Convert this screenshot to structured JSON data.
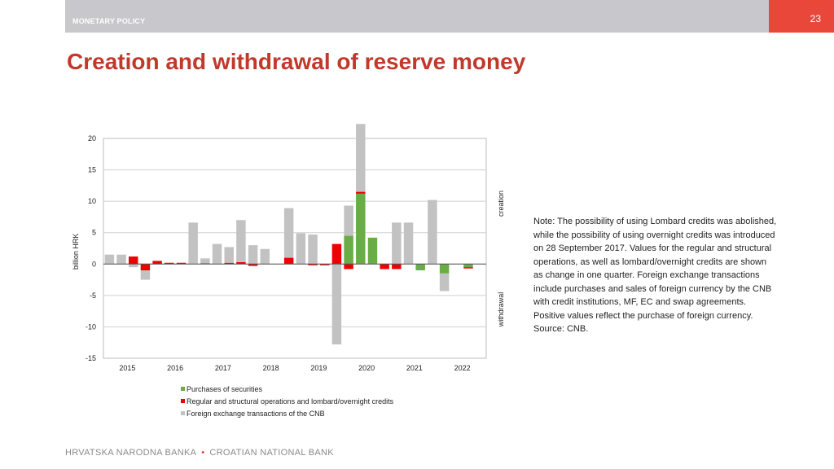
{
  "header": {
    "section": "MONETARY POLICY",
    "page_number": "23"
  },
  "title": "Creation and withdrawal of reserve money",
  "colors": {
    "securities": "#6aac46",
    "regular": "#ee0000",
    "fx": "#c2c2c2",
    "title": "#c0392b",
    "accent": "#e8473a"
  },
  "chart_data": {
    "type": "bar",
    "stacked": true,
    "ylabel": "billion HRK",
    "ylim": [
      -15,
      20
    ],
    "yticks": [
      -15,
      -10,
      -5,
      0,
      5,
      10,
      15,
      20
    ],
    "ytick_labels": [
      "-15",
      "-10",
      "-5",
      "0",
      "5",
      "10",
      "15",
      "20"
    ],
    "xtick_labels": [
      "2015",
      "2016",
      "2017",
      "2018",
      "2019",
      "2020",
      "2021",
      "2022"
    ],
    "periods_per_year": 4,
    "side_labels": {
      "positive": "creation",
      "negative": "withdrawal"
    },
    "series": [
      {
        "key": "securities",
        "name": "Purchases of securities",
        "values": [
          0,
          0,
          0,
          0,
          0,
          0,
          0,
          0,
          0,
          0,
          0,
          0,
          0,
          0,
          0,
          0,
          0,
          0,
          0,
          0,
          4.5,
          11.2,
          4.2,
          0,
          0,
          0,
          -1.0,
          0,
          -1.5,
          0,
          -0.5,
          0
        ]
      },
      {
        "key": "regular",
        "name": "Regular and structural operations and lombard/overnight credits",
        "values": [
          0,
          0,
          1.2,
          -1.0,
          0.5,
          0.2,
          0.2,
          0,
          0.1,
          0,
          0.2,
          0.3,
          -0.3,
          0,
          0,
          1.0,
          0,
          -0.2,
          -0.2,
          3.2,
          -0.8,
          0.3,
          0,
          -0.8,
          -0.8,
          0,
          0,
          0,
          0,
          0,
          -0.2,
          0
        ]
      },
      {
        "key": "fx",
        "name": "Foreign exchange transactions of the CNB",
        "values": [
          1.5,
          1.5,
          -0.5,
          -1.5,
          0,
          0,
          0,
          6.6,
          0.8,
          3.2,
          2.5,
          6.7,
          3.0,
          2.4,
          0,
          7.9,
          4.9,
          4.7,
          0,
          -12.8,
          4.8,
          10.8,
          0,
          0,
          6.6,
          6.6,
          0,
          10.2,
          -2.8,
          0,
          0,
          0
        ]
      }
    ]
  },
  "note": "Note: The possibility of using Lombard credits was abolished, while the possibility of using overnight credits was introduced on 28 September 2017. Values for the regular and structural operations, as well as lombard/overnight credits are shown as change in one quarter. Foreign exchange transactions include purchases and sales of foreign currency by the CNB with credit institutions, MF, EC and swap agreements. Positive values reflect the purchase of foreign currency. Source: CNB.",
  "legend": [
    {
      "key": "securities",
      "label": "Purchases of securities"
    },
    {
      "key": "regular",
      "label": "Regular and structural operations and lombard/overnight credits"
    },
    {
      "key": "fx",
      "label": "Foreign exchange transactions of the CNB"
    }
  ],
  "footer": {
    "left": "HRVATSKA NARODNA BANKA",
    "separator": "•",
    "right": "CROATIAN NATIONAL BANK"
  }
}
